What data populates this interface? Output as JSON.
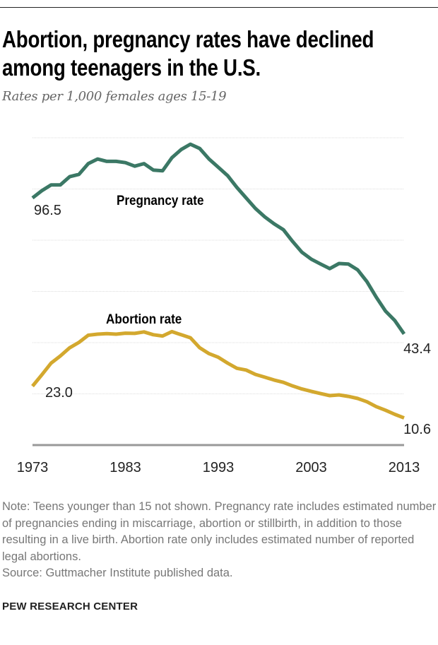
{
  "header": {
    "title": "Abortion, pregnancy rates have declined among teenagers in the U.S.",
    "subtitle": "Rates per 1,000 females ages 15-19"
  },
  "chart_data": {
    "type": "line",
    "title": "Abortion, pregnancy rates have declined among teenagers in the U.S.",
    "subtitle": "Rates per 1,000 females ages 15-19",
    "xlabel": "",
    "ylabel": "",
    "xlim": [
      1973,
      2013
    ],
    "ylim": [
      0,
      120
    ],
    "y_gridlines": [
      20,
      40,
      60,
      80,
      100,
      120
    ],
    "grid": true,
    "x_ticks": [
      "1973",
      "1983",
      "1993",
      "2003",
      "2013"
    ],
    "x": [
      1973,
      1974,
      1975,
      1976,
      1977,
      1978,
      1979,
      1980,
      1981,
      1982,
      1983,
      1984,
      1985,
      1986,
      1987,
      1988,
      1989,
      1990,
      1991,
      1992,
      1993,
      1994,
      1995,
      1996,
      1997,
      1998,
      1999,
      2000,
      2001,
      2002,
      2003,
      2004,
      2005,
      2006,
      2007,
      2008,
      2009,
      2010,
      2011,
      2012,
      2013
    ],
    "series": [
      {
        "name": "Pregnancy rate",
        "color": "#3b7865",
        "values": [
          96.5,
          99.3,
          101.6,
          101.6,
          104.8,
          105.7,
          109.9,
          111.7,
          110.8,
          110.8,
          110.3,
          108.9,
          109.9,
          107.4,
          107.1,
          112.2,
          115.4,
          117.5,
          115.8,
          111.7,
          108.5,
          105.2,
          100.6,
          96.5,
          92.4,
          89.1,
          86.4,
          84.1,
          79.5,
          75.3,
          72.6,
          70.7,
          68.9,
          70.9,
          70.7,
          68.4,
          63.8,
          57.8,
          52.3,
          48.6,
          43.4
        ],
        "start_label": "96.5",
        "end_label": "43.4"
      },
      {
        "name": "Abortion rate",
        "color": "#d3a82e",
        "values": [
          23.0,
          27.4,
          32.0,
          34.8,
          38.0,
          40.1,
          42.9,
          43.3,
          43.5,
          43.3,
          43.7,
          43.6,
          44.2,
          43.1,
          42.6,
          44.3,
          43.1,
          41.9,
          38.0,
          35.7,
          34.3,
          32.0,
          30.0,
          29.3,
          27.6,
          26.5,
          25.4,
          24.5,
          23.1,
          21.9,
          21.0,
          20.1,
          19.3,
          19.6,
          19.0,
          18.2,
          16.9,
          15.0,
          13.6,
          12.0,
          10.6
        ],
        "start_label": "23.0",
        "end_label": "10.6"
      }
    ]
  },
  "footer": {
    "note": "Note: Teens younger than 15 not shown. Pregnancy rate includes estimated number of pregnancies ending in miscarriage, abortion or stillbirth, in addition to those resulting in a live birth. Abortion rate only includes estimated number of reported legal abortions.",
    "source": "Source: Guttmacher Institute published data.",
    "brand": "PEW RESEARCH CENTER"
  }
}
